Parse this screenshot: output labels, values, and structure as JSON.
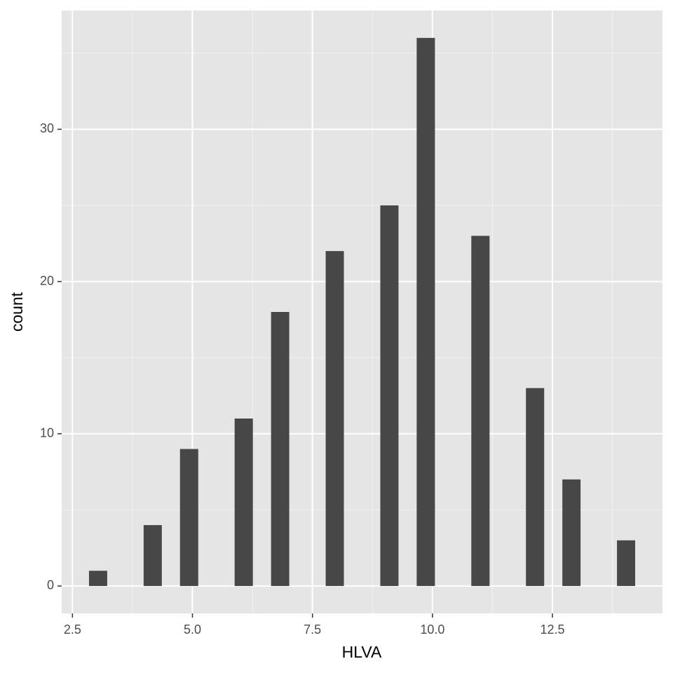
{
  "chart_data": {
    "type": "histogram",
    "x_label": "HLVA",
    "y_label": "count",
    "bins": [
      2.845,
      3.224,
      3.603,
      3.983,
      4.362,
      4.741,
      5.121,
      5.5,
      5.879,
      6.259,
      6.638,
      7.017,
      7.397,
      7.776,
      8.155,
      8.534,
      8.914,
      9.293,
      9.672,
      10.052,
      10.431,
      10.81,
      11.19,
      11.569,
      11.948,
      12.328,
      12.707,
      13.086,
      13.466,
      13.845,
      14.224
    ],
    "values": [
      1,
      0,
      0,
      4,
      0,
      9,
      0,
      0,
      11,
      0,
      18,
      0,
      0,
      22,
      0,
      0,
      25,
      0,
      36,
      0,
      0,
      23,
      0,
      0,
      13,
      0,
      7,
      0,
      0,
      3
    ],
    "color": "#474747",
    "xlim": [
      2.276,
      14.793
    ],
    "ylim": [
      -1.8,
      37.8
    ],
    "xticks": [
      {
        "value": 2.5,
        "label": "2.5"
      },
      {
        "value": 5,
        "label": "5.0"
      },
      {
        "value": 7.5,
        "label": "7.5"
      },
      {
        "value": 10,
        "label": "10.0"
      },
      {
        "value": 12.5,
        "label": "12.5"
      }
    ],
    "yticks": [
      0,
      10,
      20,
      30
    ],
    "xminor": [
      3.75,
      6.25,
      8.75,
      11.25,
      13.75
    ],
    "yminor": [
      5,
      15,
      25,
      35
    ],
    "grid": true
  }
}
